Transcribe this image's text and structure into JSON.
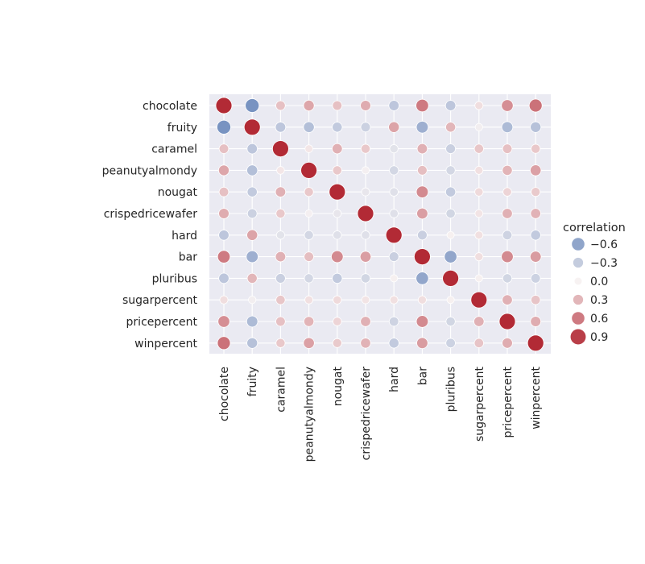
{
  "chart_data": {
    "type": "heatmap",
    "title": "",
    "xlabel": "",
    "ylabel": "",
    "variables": [
      "chocolate",
      "fruity",
      "caramel",
      "peanutyalmondy",
      "nougat",
      "crispedricewafer",
      "hard",
      "bar",
      "pluribus",
      "sugarpercent",
      "pricepercent",
      "winpercent"
    ],
    "matrix": [
      [
        1.0,
        -0.74,
        0.25,
        0.38,
        0.25,
        0.35,
        -0.34,
        0.6,
        -0.34,
        0.1,
        0.5,
        0.64
      ],
      [
        -0.74,
        1.0,
        -0.34,
        -0.4,
        -0.31,
        -0.26,
        0.39,
        -0.52,
        0.3,
        -0.03,
        -0.43,
        -0.38
      ],
      [
        0.25,
        -0.34,
        1.0,
        0.06,
        0.33,
        0.21,
        -0.12,
        0.33,
        -0.27,
        0.22,
        0.25,
        0.21
      ],
      [
        0.38,
        -0.4,
        0.06,
        1.0,
        0.21,
        -0.02,
        -0.21,
        0.26,
        -0.21,
        0.09,
        0.31,
        0.41
      ],
      [
        0.25,
        -0.31,
        0.33,
        0.21,
        1.0,
        -0.09,
        -0.14,
        0.52,
        -0.31,
        0.12,
        0.15,
        0.2
      ],
      [
        0.35,
        -0.26,
        0.21,
        -0.02,
        -0.09,
        1.0,
        -0.14,
        0.42,
        -0.22,
        0.07,
        0.33,
        0.32
      ],
      [
        -0.34,
        0.39,
        -0.12,
        -0.21,
        -0.14,
        -0.14,
        1.0,
        -0.27,
        0.01,
        0.09,
        -0.24,
        -0.31
      ],
      [
        0.6,
        -0.52,
        0.33,
        0.26,
        0.52,
        0.42,
        -0.27,
        1.0,
        -0.59,
        0.1,
        0.52,
        0.43
      ],
      [
        -0.34,
        0.3,
        -0.27,
        -0.21,
        -0.31,
        -0.22,
        0.01,
        -0.59,
        1.0,
        0.01,
        -0.22,
        -0.25
      ],
      [
        0.1,
        -0.03,
        0.22,
        0.09,
        0.12,
        0.07,
        0.09,
        0.1,
        0.01,
        1.0,
        0.33,
        0.23
      ],
      [
        0.5,
        -0.43,
        0.25,
        0.31,
        0.15,
        0.33,
        -0.24,
        0.52,
        -0.22,
        0.33,
        1.0,
        0.35
      ],
      [
        0.64,
        -0.38,
        0.21,
        0.41,
        0.2,
        0.32,
        -0.31,
        0.43,
        -0.25,
        0.23,
        0.35,
        1.0
      ]
    ],
    "color_range": [
      -1,
      1
    ],
    "colors": {
      "negative": "#4c72b0",
      "neutral": "#f7f2f2",
      "positive": "#b22a35",
      "background": "#eaeaf2",
      "grid": "#ffffff"
    },
    "legend": {
      "title": "correlation",
      "placement": "right",
      "entries": [
        {
          "label": "−0.6",
          "value": -0.6
        },
        {
          "label": "−0.3",
          "value": -0.3
        },
        {
          "label": "0.0",
          "value": 0.0
        },
        {
          "label": "0.3",
          "value": 0.3
        },
        {
          "label": "0.6",
          "value": 0.6
        },
        {
          "label": "0.9",
          "value": 0.9
        }
      ]
    },
    "grid": true,
    "marker": "circle",
    "size_encodes": "absolute correlation"
  }
}
